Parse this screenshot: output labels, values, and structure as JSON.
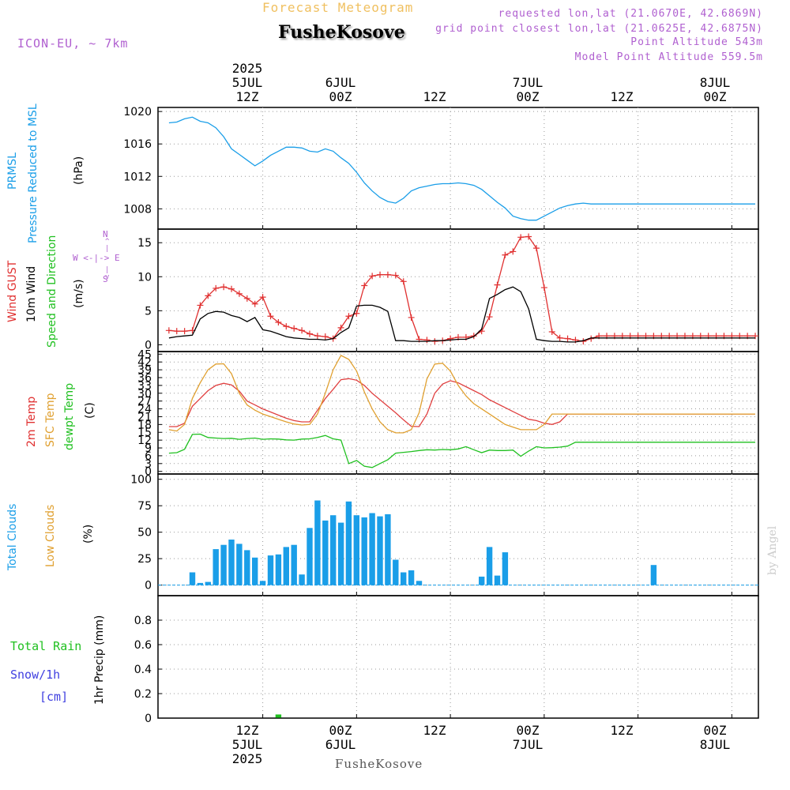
{
  "header": {
    "title": "Forecast Meteogram",
    "station": "FusheKosove",
    "model": "ICON-EU, ~ 7km",
    "requested": "requested lon,lat (21.0670E, 42.6869N)",
    "closest": "grid point closest lon,lat (21.0625E, 42.6875N)",
    "altitude": "Point Altitude 543m",
    "model_altitude": "Model Point Altitude 559.5m"
  },
  "time_axis": {
    "ticks": [
      {
        "hour": 12,
        "label": "12Z",
        "date": "5JUL",
        "year": "2025"
      },
      {
        "hour": 24,
        "label": "00Z",
        "date": "6JUL",
        "year": ""
      },
      {
        "hour": 36,
        "label": "12Z",
        "date": "",
        "year": ""
      },
      {
        "hour": 48,
        "label": "00Z",
        "date": "7JUL",
        "year": ""
      },
      {
        "hour": 60,
        "label": "12Z",
        "date": "",
        "year": ""
      },
      {
        "hour": 72,
        "label": "00Z",
        "date": "8JUL",
        "year": ""
      }
    ]
  },
  "labels": {
    "prmsl_a": "PRMSL",
    "prmsl_b": "Pressure Reduced to MSL",
    "prmsl_unit": "(hPa)",
    "wind_gust": "Wind GUST",
    "wind_10m": "10m Wind",
    "wind_dir": "Speed and Direction",
    "wind_unit": "(m/s)",
    "compass_n": "N",
    "compass_s": "S",
    "compass_we": "W <-|-> E",
    "t2m": "2m Temp",
    "tsfc": "SFC Temp",
    "tdew": "dewpt Temp",
    "temp_unit": "(C)",
    "total_clouds": "Total Clouds",
    "low_clouds": "Low Clouds",
    "cloud_unit": "(%)",
    "total_rain": "Total  Rain",
    "snow": "Snow/1h",
    "snow_unit": "[cm]",
    "precip": "1hr Precip (mm)",
    "footer_station": "FusheKosove",
    "signature": "by Angel"
  },
  "colors": {
    "pressure": "#1a9ee8",
    "gust": "#e03030",
    "wind10m": "#000000",
    "t2m": "#e04040",
    "tsfc": "#e0a030",
    "tdew": "#20c020",
    "clouds": "#1a9ee8",
    "rain": "#20c020",
    "label_blue": "#1a9ee8",
    "label_orange": "#e0a030",
    "label_green": "#20c020",
    "label_red": "#e03030",
    "label_snow": "#4040e0",
    "purple": "#b060d0"
  },
  "chart_data": [
    {
      "type": "line",
      "name": "pressure",
      "ylabel": "Pressure Reduced to MSL (hPa)",
      "ylim": [
        1005.5,
        1020.5
      ],
      "yticks": [
        1008,
        1012,
        1016,
        1020
      ],
      "x_hours": [
        0,
        1,
        2,
        3,
        4,
        5,
        6,
        7,
        8,
        9,
        10,
        11,
        12,
        13,
        14,
        15,
        16,
        17,
        18,
        19,
        20,
        21,
        22,
        23,
        24,
        25,
        26,
        27,
        28,
        29,
        30,
        31,
        32,
        33,
        34,
        35,
        36,
        37,
        38,
        39,
        40,
        41,
        42,
        43,
        44,
        45,
        46,
        47,
        48,
        49,
        50,
        51,
        52,
        53,
        54,
        55,
        56,
        57,
        58,
        59,
        60,
        61,
        62,
        63,
        64,
        65,
        66,
        67,
        68,
        69,
        70,
        71,
        72,
        73,
        74,
        75
      ],
      "series": [
        {
          "values": [
            1018.6,
            1018.7,
            1019.1,
            1019.3,
            1018.8,
            1018.6,
            1018.0,
            1016.9,
            1015.4,
            1014.7,
            1014.0,
            1013.3,
            1013.9,
            1014.6,
            1015.1,
            1015.6,
            1015.6,
            1015.5,
            1015.1,
            1015.0,
            1015.4,
            1015.1,
            1014.3,
            1013.6,
            1012.5,
            1011.2,
            1010.2,
            1009.4,
            1008.9,
            1008.7,
            1009.3,
            1010.2,
            1010.6,
            1010.8,
            1011.0,
            1011.1,
            1011.1,
            1011.2,
            1011.1,
            1010.9,
            1010.4,
            1009.6,
            1008.8,
            1008.1,
            1007.1,
            1006.8,
            1006.6,
            1006.6,
            1007.1,
            1007.6,
            1008.1,
            1008.4,
            1008.6,
            1008.7,
            1008.6,
            1008.6,
            1008.6,
            1008.6,
            1008.6,
            1008.6,
            1008.6,
            1008.6,
            1008.6,
            1008.6,
            1008.6,
            1008.6,
            1008.6,
            1008.6,
            1008.6,
            1008.6,
            1008.6,
            1008.6,
            1008.6,
            1008.6,
            1008.6,
            1008.6
          ]
        }
      ]
    },
    {
      "type": "line",
      "name": "wind",
      "ylabel": "m/s",
      "ylim": [
        -1,
        17
      ],
      "yticks": [
        0,
        5,
        10,
        15
      ],
      "x_hours": [
        0,
        1,
        2,
        3,
        4,
        5,
        6,
        7,
        8,
        9,
        10,
        11,
        12,
        13,
        14,
        15,
        16,
        17,
        18,
        19,
        20,
        21,
        22,
        23,
        24,
        25,
        26,
        27,
        28,
        29,
        30,
        31,
        32,
        33,
        34,
        35,
        36,
        37,
        38,
        39,
        40,
        41,
        42,
        43,
        44,
        45,
        46,
        47,
        48,
        49,
        50,
        51,
        52,
        53,
        54,
        55,
        56,
        57,
        58,
        59,
        60,
        61,
        62,
        63,
        64,
        65,
        66,
        67,
        68,
        69,
        70,
        71,
        72,
        73,
        74,
        75
      ],
      "series": [
        {
          "name": "Wind GUST",
          "values": [
            2.1,
            2.0,
            2.0,
            2.1,
            5.8,
            7.2,
            8.3,
            8.5,
            8.2,
            7.5,
            6.8,
            6.0,
            7.0,
            4.2,
            3.3,
            2.7,
            2.4,
            2.1,
            1.6,
            1.3,
            1.2,
            0.9,
            2.5,
            4.2,
            4.6,
            8.7,
            10.1,
            10.3,
            10.3,
            10.2,
            9.3,
            4.0,
            0.8,
            0.7,
            0.5,
            0.6,
            0.9,
            1.1,
            1.1,
            1.3,
            2.0,
            4.1,
            8.8,
            13.2,
            13.7,
            15.8,
            15.9,
            14.2,
            8.4,
            1.9,
            1.0,
            0.9,
            0.7,
            0.5,
            0.9,
            1.3,
            1.3,
            1.3,
            1.3,
            1.3,
            1.3,
            1.3,
            1.3,
            1.3,
            1.3,
            1.3,
            1.3,
            1.3,
            1.3,
            1.3,
            1.3,
            1.3,
            1.3,
            1.3,
            1.3,
            1.3
          ]
        },
        {
          "name": "10m Wind",
          "values": [
            1.0,
            1.2,
            1.3,
            1.4,
            3.8,
            4.6,
            4.9,
            4.8,
            4.3,
            4.0,
            3.4,
            4.0,
            2.2,
            2.0,
            1.6,
            1.2,
            1.0,
            0.9,
            0.8,
            0.8,
            0.7,
            0.9,
            1.8,
            2.5,
            5.7,
            5.8,
            5.8,
            5.5,
            4.9,
            0.6,
            0.6,
            0.5,
            0.5,
            0.5,
            0.6,
            0.6,
            0.7,
            0.8,
            0.8,
            1.2,
            2.3,
            6.8,
            7.4,
            8.1,
            8.5,
            7.8,
            5.3,
            0.8,
            0.6,
            0.5,
            0.5,
            0.4,
            0.4,
            0.6,
            1.0,
            1.0,
            1.0,
            1.0,
            1.0,
            1.0,
            1.0,
            1.0,
            1.0,
            1.0,
            1.0,
            1.0,
            1.0,
            1.0,
            1.0,
            1.0,
            1.0,
            1.0,
            1.0,
            1.0,
            1.0,
            1.0
          ]
        }
      ]
    },
    {
      "type": "line",
      "name": "temperature",
      "ylabel": "C",
      "ylim": [
        -1,
        46
      ],
      "yticks": [
        0,
        3,
        6,
        9,
        12,
        15,
        18,
        21,
        24,
        27,
        30,
        33,
        36,
        39,
        42,
        45
      ],
      "x_hours": [
        0,
        1,
        2,
        3,
        4,
        5,
        6,
        7,
        8,
        9,
        10,
        11,
        12,
        13,
        14,
        15,
        16,
        17,
        18,
        19,
        20,
        21,
        22,
        23,
        24,
        25,
        26,
        27,
        28,
        29,
        30,
        31,
        32,
        33,
        34,
        35,
        36,
        37,
        38,
        39,
        40,
        41,
        42,
        43,
        44,
        45,
        46,
        47,
        48,
        49,
        50,
        51,
        52,
        53,
        54,
        55,
        56,
        57,
        58,
        59,
        60,
        61,
        62,
        63,
        64,
        65,
        66,
        67,
        68,
        69,
        70,
        71,
        72,
        73,
        74,
        75
      ],
      "series": [
        {
          "name": "2m Temp",
          "values": [
            17.2,
            17.2,
            18.5,
            25.0,
            28.0,
            31.0,
            33.0,
            33.8,
            33.2,
            30.8,
            27.0,
            25.5,
            24.0,
            22.8,
            21.6,
            20.4,
            19.5,
            19.0,
            19.0,
            23.5,
            28.0,
            31.5,
            35.2,
            35.6,
            35.0,
            33.0,
            30.0,
            27.5,
            25.0,
            22.5,
            19.8,
            17.3,
            17.2,
            22.0,
            30.0,
            33.5,
            34.8,
            34.0,
            32.5,
            31.0,
            29.5,
            27.5,
            26.0,
            24.5,
            23.0,
            21.5,
            20.0,
            19.5,
            18.5,
            18.0,
            19.0,
            22.0,
            22.0,
            22.0,
            22.0,
            22.0,
            22.0,
            22.0,
            22.0,
            22.0,
            22.0,
            22.0,
            22.0,
            22.0,
            22.0,
            22.0,
            22.0,
            22.0,
            22.0,
            22.0,
            22.0,
            22.0,
            22.0,
            22.0,
            22.0,
            22.0
          ]
        },
        {
          "name": "SFC Temp",
          "values": [
            16.0,
            15.5,
            18.0,
            28.0,
            34.0,
            39.0,
            41.2,
            41.3,
            37.5,
            30.0,
            25.5,
            23.5,
            22.0,
            21.0,
            20.0,
            19.0,
            18.2,
            17.8,
            18.0,
            22.0,
            30.0,
            39.0,
            44.5,
            43.0,
            38.5,
            30.5,
            24.0,
            19.0,
            16.0,
            14.8,
            14.8,
            16.0,
            22.5,
            35.5,
            41.2,
            41.5,
            38.5,
            33.0,
            29.0,
            26.0,
            24.0,
            22.0,
            20.0,
            18.0,
            17.0,
            16.0,
            16.0,
            16.0,
            18.0,
            22.0,
            22.0,
            22.0,
            22.0,
            22.0,
            22.0,
            22.0,
            22.0,
            22.0,
            22.0,
            22.0,
            22.0,
            22.0,
            22.0,
            22.0,
            22.0,
            22.0,
            22.0,
            22.0,
            22.0,
            22.0,
            22.0,
            22.0,
            22.0,
            22.0,
            22.0,
            22.0
          ]
        },
        {
          "name": "dewpt Temp",
          "values": [
            7.0,
            7.2,
            8.5,
            14.2,
            14.3,
            13.0,
            12.8,
            12.6,
            12.7,
            12.3,
            12.6,
            12.8,
            12.3,
            12.5,
            12.4,
            12.1,
            12.0,
            12.4,
            12.5,
            13.0,
            13.8,
            12.5,
            12.0,
            3.0,
            4.2,
            2.0,
            1.5,
            3.0,
            4.5,
            7.0,
            7.3,
            7.6,
            8.0,
            8.3,
            8.2,
            8.4,
            8.3,
            8.6,
            9.5,
            8.3,
            7.2,
            8.2,
            8.0,
            8.0,
            8.2,
            5.8,
            7.8,
            9.5,
            9.0,
            9.1,
            9.3,
            9.7,
            11.2,
            11.2,
            11.2,
            11.2,
            11.2,
            11.2,
            11.2,
            11.2,
            11.2,
            11.2,
            11.2,
            11.2,
            11.2,
            11.2,
            11.2,
            11.2,
            11.2,
            11.2,
            11.2,
            11.2,
            11.2,
            11.2,
            11.2,
            11.2
          ]
        }
      ]
    },
    {
      "type": "bar",
      "name": "clouds",
      "ylabel": "%",
      "ylim": [
        -10,
        105
      ],
      "yticks": [
        0,
        25,
        50,
        75,
        100
      ],
      "x_hours": [
        0,
        1,
        2,
        3,
        4,
        5,
        6,
        7,
        8,
        9,
        10,
        11,
        12,
        13,
        14,
        15,
        16,
        17,
        18,
        19,
        20,
        21,
        22,
        23,
        24,
        25,
        26,
        27,
        28,
        29,
        30,
        31,
        32,
        33,
        34,
        35,
        36,
        37,
        38,
        39,
        40,
        41,
        42,
        43,
        44,
        45,
        46,
        47,
        48,
        49,
        50,
        51,
        52,
        53,
        54,
        55,
        56,
        57,
        58,
        59,
        60,
        61,
        62,
        63,
        64,
        65,
        66,
        67,
        68,
        69,
        70,
        71,
        72,
        73,
        74,
        75
      ],
      "series": [
        {
          "name": "Total Clouds",
          "values": [
            0,
            0,
            0,
            12,
            2,
            3,
            34,
            38,
            43,
            39,
            33,
            26,
            4,
            28,
            29,
            36,
            38,
            10,
            54,
            80,
            61,
            66,
            59,
            79,
            66,
            64,
            68,
            65,
            67,
            24,
            12,
            14,
            4,
            0,
            0,
            0,
            0,
            0,
            0,
            0,
            8,
            36,
            9,
            31,
            0,
            0,
            0,
            0,
            0,
            0,
            0,
            0,
            0,
            0,
            0,
            0,
            0,
            0,
            0,
            0,
            0,
            0,
            19,
            0,
            0,
            0,
            0,
            0,
            0,
            0,
            0,
            0,
            0,
            0,
            0,
            0
          ]
        },
        {
          "name": "Low Clouds",
          "values": [
            0,
            0,
            0,
            0,
            0,
            0,
            0,
            0,
            0,
            0,
            0,
            0,
            0,
            0,
            0,
            0,
            0,
            0,
            0,
            0,
            0,
            0,
            0,
            0,
            0,
            0,
            0,
            0,
            0,
            0,
            0,
            0,
            0,
            0,
            0,
            0,
            0,
            0,
            0,
            0,
            0,
            0,
            0,
            0,
            0,
            0,
            0,
            0,
            0,
            0,
            0,
            0,
            0,
            0,
            0,
            0,
            0,
            0,
            0,
            0,
            0,
            0,
            0,
            0,
            0,
            0,
            0,
            0,
            0,
            0,
            0,
            0,
            0,
            0,
            0,
            0
          ]
        }
      ]
    },
    {
      "type": "bar",
      "name": "precip",
      "ylabel": "1hr Precip (mm)",
      "ylim": [
        0,
        1.0
      ],
      "yticks": [
        0,
        0.2,
        0.4,
        0.6,
        0.8
      ],
      "x_hours": [
        14
      ],
      "series": [
        {
          "name": "Total Rain",
          "values": [
            0.03
          ]
        }
      ]
    }
  ]
}
